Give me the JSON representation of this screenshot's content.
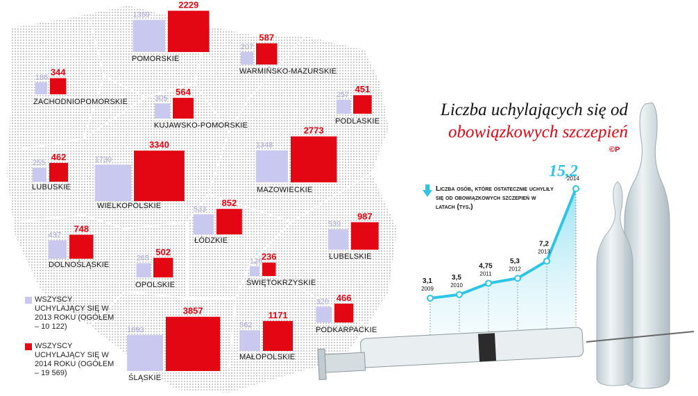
{
  "chart_data": [
    {
      "type": "square-map",
      "categories": [
        "POMORSKIE",
        "WARMIŃSKO-MAZURSKIE",
        "ZACHODNIOPOMORSKIE",
        "PODLASKIE",
        "KUJAWSKO-POMORSKIE",
        "LUBUSKIE",
        "WIELKOPOLSKIE",
        "MAZOWIECKIE",
        "ŁÓDZKIE",
        "LUBELSKIE",
        "DOLNOŚLĄSKIE",
        "OPOLSKIE",
        "ŚWIĘTOKRZYSKIE",
        "PODKARPACKIE",
        "ŚLĄSKIE",
        "MAŁOPOLSKIE"
      ],
      "series": [
        {
          "name": "WSZYSCY UCHYLAJĄCY SIĘ W 2013 ROKU (OGÓŁEM – 10 122)",
          "color": "#c9c9ef",
          "values": [
            1359,
            207,
            186,
            257,
            305,
            255,
            1730,
            1348,
            533,
            539,
            437,
            265,
            126,
            320,
            1693,
            562
          ]
        },
        {
          "name": "WSZYSCY UCHYLAJĄCY SIĘ W 2014 ROKU (OGÓŁEM – 19 569)",
          "color": "#e30613",
          "values": [
            2229,
            587,
            344,
            451,
            564,
            462,
            3340,
            2773,
            852,
            987,
            748,
            502,
            236,
            466,
            3857,
            1171
          ]
        }
      ]
    },
    {
      "type": "line",
      "title": [
        "Liczba uchylających się od",
        "obowiązkowych szczepień"
      ],
      "credit": "©P",
      "annotation": "Liczba osób, które ostatecznie uchyliły się od obowiązkowych szczepień w latach (tys.)",
      "x": [
        2009,
        2010,
        2011,
        2012,
        2013,
        2014
      ],
      "values": [
        3.1,
        3.5,
        4.75,
        5.3,
        7.2,
        15.2
      ],
      "value_labels": [
        "3,1",
        "3,5",
        "4,75",
        "5,3",
        "7,2",
        "15,2"
      ],
      "color": "#2ec4e6"
    }
  ]
}
